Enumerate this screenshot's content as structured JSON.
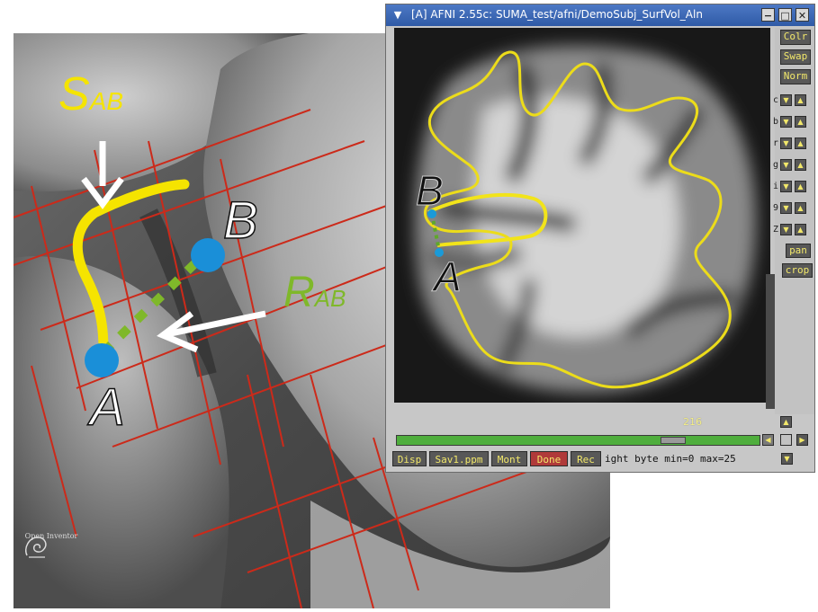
{
  "surface_view": {
    "labels": {
      "s_main": "S",
      "s_sub": "AB",
      "r_main": "R",
      "r_sub": "AB",
      "point_a": "A",
      "point_b": "B"
    },
    "logo_text": "Open Inventor",
    "colors": {
      "curve": "#f5e400",
      "dashed": "#7fb82a",
      "points": "#1a8fd8",
      "grid": "#cc2a1a",
      "s_label": "#f5e400",
      "r_label": "#7fb82a"
    }
  },
  "afni_window": {
    "title": "[A] AFNI 2.55c: SUMA_test/afni/DemoSubj_SurfVol_Aln",
    "window_buttons": [
      "−",
      "□",
      "✕"
    ],
    "menu_icon": "chevron-down-icon",
    "side_buttons": [
      "Colr",
      "Swap",
      "Norm"
    ],
    "control_rows": [
      "c",
      "b",
      "r",
      "g",
      "i",
      "9",
      "Z"
    ],
    "pan_label": "pan",
    "crop_label": "crop",
    "slice_labels": {
      "point_a": "A",
      "point_b": "B"
    },
    "slider": {
      "value": "216",
      "fraction": 0.78
    },
    "bottom_buttons": {
      "disp": "Disp",
      "save": "Sav1.ppm",
      "mont": "Mont",
      "done": "Done",
      "rec": "Rec"
    },
    "status_text": "ight byte min=0 max=25"
  }
}
